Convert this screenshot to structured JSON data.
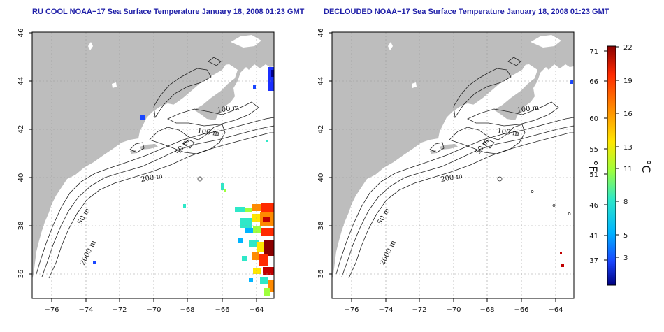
{
  "panels": [
    {
      "title": "RU COOL NOAA−17 Sea Surface Temperature January 18, 2008 01:23 GMT"
    },
    {
      "title": "DECLOUDED NOAA−17 Sea Surface Temperature January 18, 2008 01:23 GMT"
    }
  ],
  "map": {
    "lon_range": [
      -77,
      -63
    ],
    "lat_range": [
      35,
      46
    ],
    "lon_ticks": [
      "−76",
      "−74",
      "−72",
      "−70",
      "−68",
      "−66",
      "−64"
    ],
    "lat_ticks": [
      "36",
      "38",
      "40",
      "42",
      "44",
      "46"
    ],
    "land_color": "#bdbdbd",
    "grid": true
  },
  "contour_labels": [
    {
      "text": "100 m"
    },
    {
      "text": "100 m"
    },
    {
      "text": "50 m"
    },
    {
      "text": "200 m"
    },
    {
      "text": "50 m"
    },
    {
      "text": "2000 m"
    }
  ],
  "colorbar": {
    "fahrenheit_ticks": [
      "71",
      "66",
      "60",
      "55",
      "51",
      "46",
      "41",
      "37"
    ],
    "celsius_ticks": [
      "22",
      "19",
      "16",
      "13",
      "11",
      "8",
      "5",
      "3"
    ],
    "f_label": "°F",
    "c_label": "°C",
    "colors": [
      "#8b0000",
      "#ff2a00",
      "#ff8a00",
      "#ffe600",
      "#9eff3c",
      "#2ee8c8",
      "#00b4ff",
      "#1a46ff",
      "#000080"
    ]
  }
}
